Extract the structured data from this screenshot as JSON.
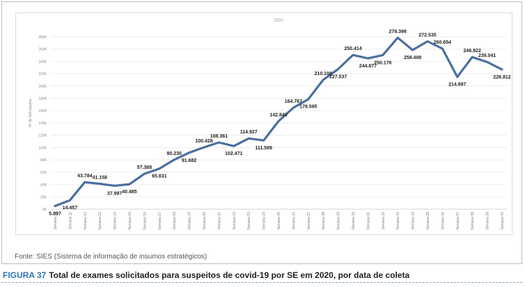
{
  "chart_data": {
    "type": "line",
    "title": "2020",
    "ylabel": "Nº de Solicitações",
    "xlabel": "",
    "ylim": [
      0,
      290000
    ],
    "yticks": [
      0,
      20000,
      40000,
      60000,
      80000,
      100000,
      120000,
      140000,
      160000,
      180000,
      200000,
      220000,
      240000,
      260000,
      280000
    ],
    "ytick_labels": [
      "0K",
      "20K",
      "40K",
      "60K",
      "80K",
      "100K",
      "120K",
      "140K",
      "160K",
      "180K",
      "200K",
      "220K",
      "240K",
      "260K",
      "280K"
    ],
    "grid": true,
    "legend": "none",
    "line_color": "#4a6f9e",
    "categories": [
      "Semana 10",
      "Semana 11",
      "Semana 12",
      "Semana 13",
      "Semana 14",
      "Semana 15",
      "Semana 16",
      "Semana 17",
      "Semana 18",
      "Semana 19",
      "Semana 20",
      "Semana 21",
      "Semana 22",
      "Semana 23",
      "Semana 24",
      "Semana 25",
      "Semana 26",
      "Semana 27",
      "Semana 28",
      "Semana 29",
      "Semana 30",
      "Semana 31",
      "Semana 32",
      "Semana 33",
      "Semana 34",
      "Semana 35",
      "Semana 36",
      "Semana 37",
      "Semana 38",
      "Semana 39",
      "Semana 40"
    ],
    "values": [
      5097,
      14457,
      43784,
      41158,
      37997,
      40485,
      57388,
      65831,
      80230,
      91682,
      100428,
      108361,
      102471,
      114927,
      111589,
      142843,
      164767,
      178595,
      210109,
      227537,
      250414,
      244877,
      250176,
      278398,
      258408,
      272535,
      260654,
      214697,
      246922,
      239041,
      226812
    ],
    "data_labels": [
      "5.097",
      "14.457",
      "43.784",
      "41.158",
      "37.997",
      "40.485",
      "57.388",
      "65.831",
      "80.230",
      "91.682",
      "100.428",
      "108.361",
      "102.471",
      "114.927",
      "111.589",
      "142.843",
      "164.767",
      "178.595",
      "210.109",
      "227.537",
      "250.414",
      "244.877",
      "250.176",
      "278.398",
      "258.408",
      "272.535",
      "260.654",
      "214.697",
      "246.922",
      "239.041",
      "226.812"
    ],
    "label_position": [
      "below",
      "below",
      "above",
      "above",
      "below",
      "below",
      "above",
      "below",
      "above",
      "below",
      "above",
      "above",
      "below",
      "above",
      "below",
      "above",
      "above",
      "below",
      "above",
      "below",
      "above",
      "below",
      "below",
      "above",
      "below",
      "above",
      "above",
      "below",
      "above",
      "above",
      "below"
    ]
  },
  "source": "Fonte:  SIES (Sistema de informação de insumos estratégicos)",
  "caption": {
    "figure_label": "FIGURA 37",
    "text": "Total de exames solicitados para suspeitos de covid-19 por SE em 2020, por data de coleta"
  }
}
